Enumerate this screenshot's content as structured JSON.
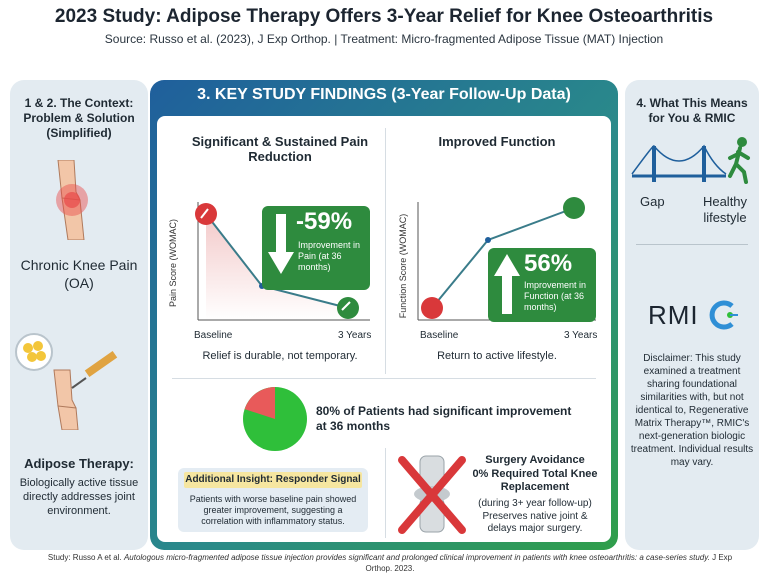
{
  "header": {
    "title": "2023 Study: Adipose Therapy Offers 3-Year Relief for Knee Osteoarthritis",
    "subtitle": "Source: Russo et al. (2023), J Exp Orthop. | Treatment: Micro-fragmented Adipose Tissue (MAT) Injection"
  },
  "left": {
    "heading": "1 & 2. The Context: Problem & Solution (Simplified)",
    "problem": "Chronic Knee Pain (OA)",
    "solution_title": "Adipose Therapy:",
    "solution_text": "Biologically active tissue directly addresses joint environment."
  },
  "middle": {
    "heading": "3. KEY STUDY FINDINGS (3-Year Follow-Up Data)",
    "pain": {
      "title": "Significant & Sustained Pain Reduction",
      "ylabel": "Pain Score (WOMAC)",
      "x_start": "Baseline",
      "x_end": "3 Years",
      "big": "-59%",
      "box_text": "Improvement in Pain (at 36 months)",
      "caption": "Relief is durable, not temporary."
    },
    "function": {
      "title": "Improved Function",
      "ylabel": "Function Score (WOMAC)",
      "x_start": "Baseline",
      "x_end": "3 Years",
      "big": "56%",
      "box_text": "Improvement in Function (at 36 months)",
      "caption": "Return to active lifestyle."
    },
    "patients": {
      "text": "80% of Patients had significant improvement at 36 months",
      "percent": 80
    },
    "insight": {
      "tag": "Additional Insight: Responder Signal",
      "text": "Patients with worse baseline pain showed greater improvement, suggesting a correlation with inflammatory status."
    },
    "surgery": {
      "title": "Surgery Avoidance",
      "line2": "0% Required Total Knee Replacement",
      "line3": "(during 3+ year follow-up)",
      "line4": "Preserves native joint & delays major surgery."
    }
  },
  "right": {
    "heading": "4. What This Means for You & RMIC",
    "gap": "Gap",
    "healthy": "Healthy lifestyle",
    "logo_text": "RMI",
    "disclaimer": "Disclaimer: This study examined a treatment sharing foundational similarities with, but not identical to, Regenerative Matrix Therapy™, RMIC's next-generation biologic treatment. Individual results may vary."
  },
  "footer": {
    "prefix": "Study: Russo A et al. ",
    "italic": "Autologous micro-fragmented adipose tissue injection provides significant and prolonged clinical improvement in patients with knee osteoarthritis: a case-series study.",
    "suffix": " J Exp Orthop. 2023."
  },
  "colors": {
    "green": "#2e8b3e",
    "red": "#d9383a",
    "blue": "#1f5f9c"
  }
}
